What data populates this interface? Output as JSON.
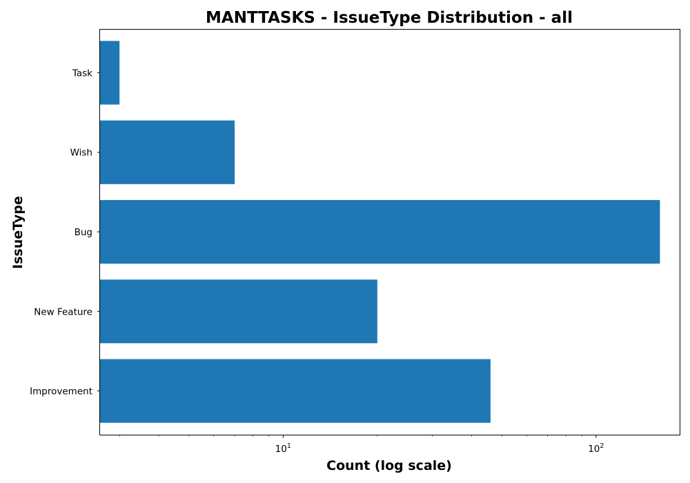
{
  "chart_data": {
    "type": "bar",
    "orientation": "horizontal",
    "title": "MANTTASKS - IssueType Distribution - all",
    "xlabel": "Count (log scale)",
    "ylabel": "IssueType",
    "x_scale": "log",
    "xlim": [
      2.6,
      185
    ],
    "categories": [
      "Task",
      "Wish",
      "Bug",
      "New Feature",
      "Improvement"
    ],
    "values": [
      3,
      7,
      160,
      20,
      46
    ],
    "bar_color": "#1f77b4",
    "xticks": [
      {
        "value": 10,
        "base": "10",
        "exponent": "1"
      },
      {
        "value": 100,
        "base": "10",
        "exponent": "2"
      }
    ],
    "grid": false,
    "legend": "none"
  }
}
